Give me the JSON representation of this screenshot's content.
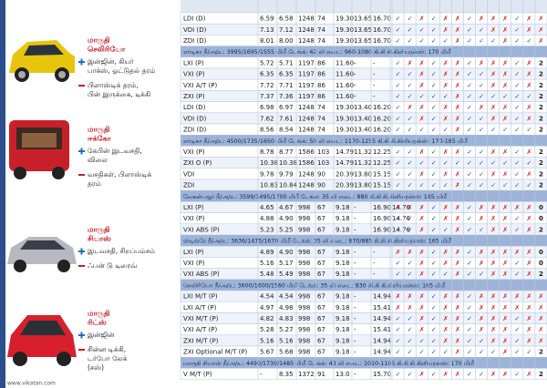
{
  "cars": [
    {
      "name": [
        "மாருதி",
        "செலிரியோ"
      ],
      "pros": [
        "இன்ஜின், கியர்",
        "பாக்ஸ், ஓட்டுதல் தரம்"
      ],
      "cons": [
        "பிளாஸ்டிக் தரம்,",
        "பின் இருக்கை, டிக்கி"
      ]
    },
    {
      "name": [
        "மாருதி",
        "ஈக்கோ"
      ],
      "pros": [
        "கேபின் இடவசதி,",
        "விலை"
      ],
      "cons": [
        "வசதிகள், பிளாஸ்டிக்",
        "தரம்"
      ]
    },
    {
      "name": [
        "மாருதி",
        "சியாஸ்"
      ],
      "pros": [
        "இடவசதி, சிறப்பம்சம்"
      ],
      "cons": [
        "ஃபன் டு டிரைவ்"
      ]
    },
    {
      "name": [
        "மாருதி",
        "ரிட்ஸ்"
      ],
      "pros": [
        "இன்ஜின்"
      ],
      "cons": [
        "சின்ன டிக்கி,",
        "டர்போ லேக்",
        "(சஸ்)"
      ]
    }
  ],
  "footer": "www.vikatan.com",
  "table": {
    "rows": [
      {
        "cells": [
          "LDI (D)",
          "6.59",
          "6.58",
          "1248",
          "74",
          "19.30",
          "13.65",
          "16.70"
        ],
        "marks": [
          "✓",
          "✓",
          "✗",
          "✓",
          "✗",
          "✗",
          "✓",
          "✗",
          "✗",
          "✗",
          "✓",
          "✗",
          "✗"
        ]
      },
      {
        "cells": [
          "VDI (D)",
          "7.13",
          "7.12",
          "1248",
          "74",
          "19.30",
          "13.65",
          "16.70"
        ],
        "marks": [
          "✓",
          "✓",
          "✓",
          "✓",
          "✗",
          "✗",
          "✓",
          "✓",
          "✗",
          "✗",
          "✓",
          "✗",
          "✗"
        ]
      },
      {
        "cells": [
          "ZDI (D)",
          "8.01",
          "8.00",
          "1248",
          "74",
          "19.30",
          "13.65",
          "16.70"
        ],
        "marks": [
          "✓",
          "✓",
          "✓",
          "✓",
          "✓",
          "✗",
          "✓",
          "✓",
          "✓",
          "✗",
          "✓",
          "✓",
          "✗"
        ]
      },
      {
        "band": "எர்டிகா  நீ/அ/உ: 3995/1695/1555 மிமீ  டேங்க்: 42 லி  எடை: 960-1080 கி.கி  கி.கிளியரன்ஸ்: 170 மிமீ"
      },
      {
        "cells": [
          "LXI (P)",
          "5.72",
          "5.71",
          "1197",
          "86",
          "11.60",
          "-",
          "-"
        ],
        "marks": [
          "✓",
          "✗",
          "✗",
          "✓",
          "✗",
          "✗",
          "✓",
          "✗",
          "✗",
          "✗",
          "✓",
          "✗",
          "2"
        ]
      },
      {
        "cells": [
          "VXI (P)",
          "6.35",
          "6.35",
          "1197",
          "86",
          "11.60",
          "-",
          "-"
        ],
        "marks": [
          "✓",
          "✓",
          "✗",
          "✓",
          "✗",
          "✗",
          "✓",
          "✓",
          "✗",
          "✗",
          "✓",
          "✗",
          "2"
        ]
      },
      {
        "cells": [
          "VXI A/T (P)",
          "7.72",
          "7.71",
          "1197",
          "86",
          "11.60",
          "-",
          "-"
        ],
        "marks": [
          "✓",
          "✓",
          "✗",
          "✓",
          "✗",
          "✗",
          "✓",
          "✓",
          "✗",
          "✗",
          "✓",
          "✗",
          "2"
        ]
      },
      {
        "cells": [
          "ZXI (P)",
          "7.37",
          "7.36",
          "1197",
          "86",
          "11.60",
          "-",
          "-"
        ],
        "marks": [
          "✓",
          "✓",
          "✓",
          "✓",
          "✓",
          "✗",
          "✓",
          "✓",
          "✓",
          "✓",
          "✓",
          "✓",
          "2"
        ]
      },
      {
        "cells": [
          "LDI (D)",
          "6.98",
          "6.97",
          "1248",
          "74",
          "19.30",
          "13.40",
          "16.20"
        ],
        "marks": [
          "✓",
          "✗",
          "✗",
          "✓",
          "✗",
          "✗",
          "✓",
          "✗",
          "✗",
          "✗",
          "✓",
          "✗",
          "2"
        ]
      },
      {
        "cells": [
          "VDI (D)",
          "7.62",
          "7.61",
          "1248",
          "74",
          "19.30",
          "13.40",
          "16.20"
        ],
        "marks": [
          "✓",
          "✓",
          "✗",
          "✓",
          "✗",
          "✗",
          "✓",
          "✓",
          "✗",
          "✗",
          "✓",
          "✗",
          "2"
        ]
      },
      {
        "cells": [
          "ZDI (D)",
          "8.56",
          "8.54",
          "1248",
          "74",
          "19.30",
          "13.40",
          "16.20"
        ],
        "marks": [
          "✓",
          "✓",
          "✓",
          "✓",
          "✓",
          "✗",
          "✓",
          "✓",
          "✓",
          "✓",
          "✓",
          "✓",
          "2"
        ]
      },
      {
        "band": "எர்டிகா  நீ/அ/உ: 4500/1735/1650 மிமீ  டேங்க்: 50 லி  எடை: 1170-1255 கி.கி  கி.கிளியரன்ஸ்: 170-185 மிமீ"
      },
      {
        "cells": [
          "VXI (P)",
          "8.78",
          "8.77",
          "1586",
          "103",
          "14.79",
          "11.32",
          "12.25"
        ],
        "marks": [
          "✓",
          "✓",
          "✗",
          "✓",
          "✗",
          "✗",
          "✓",
          "✓",
          "✗",
          "✗",
          "✓",
          "✗",
          "2"
        ]
      },
      {
        "cells": [
          "ZXI O (P)",
          "10.38",
          "10.38",
          "1586",
          "103",
          "14.79",
          "11.32",
          "12.25"
        ],
        "marks": [
          "✓",
          "✓",
          "✓",
          "✓",
          "✓",
          "✓",
          "✓",
          "✓",
          "✓",
          "✓",
          "✓",
          "✓",
          "2"
        ]
      },
      {
        "cells": [
          "VDI",
          "9.78",
          "9.79",
          "1248",
          "90",
          "20.39",
          "13.80",
          "15.15"
        ],
        "marks": [
          "✓",
          "✓",
          "✗",
          "✓",
          "✗",
          "✗",
          "✓",
          "✓",
          "✗",
          "✗",
          "✓",
          "✗",
          "2"
        ]
      },
      {
        "cells": [
          "ZDI",
          "10.83",
          "10.84",
          "1248",
          "90",
          "20.39",
          "13.80",
          "15.15"
        ],
        "marks": [
          "✓",
          "✓",
          "✓",
          "✓",
          "✓",
          "✗",
          "✓",
          "✓",
          "✓",
          "✓",
          "✓",
          "✓",
          "2"
        ]
      },
      {
        "band": "வேகன்-ஆர்  நீ/அ/உ: 3599/1495/1700 மிமீ  டேங்க்: 35 லி  எடை: 880 கி.கி  கி.கிளியரன்ஸ்: 165 மிமீ"
      },
      {
        "cells": [
          "LXI (P)",
          "4.65",
          "4.67",
          "998",
          "67",
          "9.18",
          "-",
          "16.90",
          "14.76"
        ],
        "marks": [
          "✗",
          "✗",
          "✗",
          "✓",
          "✗",
          "✗",
          "✓",
          "✗",
          "✗",
          "✗",
          "✗",
          "✗",
          "0"
        ]
      },
      {
        "cells": [
          "VXI (P)",
          "4.88",
          "4.90",
          "998",
          "67",
          "9.18",
          "-",
          "16.90",
          "14.76"
        ],
        "marks": [
          "✓",
          "✓",
          "✗",
          "✓",
          "✗",
          "✗",
          "✓",
          "✗",
          "✗",
          "✗",
          "✓",
          "✗",
          "0"
        ]
      },
      {
        "cells": [
          "VXI ABS (P)",
          "5.23",
          "5.25",
          "998",
          "67",
          "9.18",
          "-",
          "16.90",
          "14.76"
        ],
        "marks": [
          "✓",
          "✓",
          "✗",
          "✓",
          "✓",
          "✗",
          "✓",
          "✓",
          "✗",
          "✗",
          "✓",
          "✗",
          "2"
        ]
      },
      {
        "band": "ஸ்டிங்ரே  நீ/அ/உ: 3636/1475/1670 மிமீ  டேங்க்: 35 லி  எடை: 870/885 கி.கி  கி.கிளியரன்ஸ்: 165 மிமீ"
      },
      {
        "cells": [
          "LXI (P)",
          "4.89",
          "4.90",
          "998",
          "67",
          "9.18",
          "-",
          "-"
        ],
        "marks": [
          "✗",
          "✗",
          "✗",
          "✓",
          "✗",
          "✗",
          "✓",
          "✗",
          "✗",
          "✗",
          "✗",
          "✗",
          "0"
        ]
      },
      {
        "cells": [
          "VXI (P)",
          "5.16",
          "5.17",
          "998",
          "67",
          "9.18",
          "-",
          "-"
        ],
        "marks": [
          "✓",
          "✓",
          "✗",
          "✓",
          "✗",
          "✗",
          "✓",
          "✗",
          "✗",
          "✗",
          "✓",
          "✗",
          "0"
        ]
      },
      {
        "cells": [
          "VXI ABS (P)",
          "5.48",
          "5.49",
          "998",
          "67",
          "9.18",
          "-",
          "-"
        ],
        "marks": [
          "✓",
          "✓",
          "✗",
          "✓",
          "✓",
          "✗",
          "✓",
          "✓",
          "✗",
          "✗",
          "✓",
          "✗",
          "2"
        ]
      },
      {
        "band": "செலிரியோ  நீ/அ/உ: 3600/1600/1560 மிமீ  டேங்க்: 35 லி  எடை: 830 கி.கி  கி.கிளியரன்ஸ்: 165 மிமீ"
      },
      {
        "cells": [
          "LXI M/T (P)",
          "4.54",
          "4.54",
          "998",
          "67",
          "9.18",
          "-",
          "14.94"
        ],
        "marks": [
          "✗",
          "✗",
          "✗",
          "✓",
          "✗",
          "✗",
          "✓",
          "✗",
          "✗",
          "✗",
          "✗",
          "✗",
          "✗"
        ]
      },
      {
        "cells": [
          "LXI A/T (P)",
          "4.97",
          "4.98",
          "998",
          "67",
          "9.18",
          "-",
          "15.41"
        ],
        "marks": [
          "✗",
          "✗",
          "✗",
          "✓",
          "✗",
          "✗",
          "✓",
          "✗",
          "✗",
          "✗",
          "✗",
          "✗",
          "✗"
        ]
      },
      {
        "cells": [
          "VXI M/T (P)",
          "4.82",
          "4.83",
          "998",
          "67",
          "9.18",
          "-",
          "14.94"
        ],
        "marks": [
          "✓",
          "✓",
          "✗",
          "✓",
          "✗",
          "✗",
          "✓",
          "✗",
          "✗",
          "✗",
          "✓",
          "✗",
          "✗"
        ]
      },
      {
        "cells": [
          "VXI A/T (P)",
          "5.28",
          "5.27",
          "998",
          "67",
          "9.18",
          "-",
          "15.41"
        ],
        "marks": [
          "✓",
          "✓",
          "✗",
          "✓",
          "✗",
          "✗",
          "✓",
          "✗",
          "✗",
          "✗",
          "✓",
          "✗",
          "✗"
        ]
      },
      {
        "cells": [
          "ZXI M/T (P)",
          "5.16",
          "5.16",
          "998",
          "67",
          "9.18",
          "-",
          "14.94"
        ],
        "marks": [
          "✓",
          "✓",
          "✓",
          "✓",
          "✗",
          "✗",
          "✓",
          "✓",
          "✗",
          "✗",
          "✓",
          "✗",
          "✗"
        ]
      },
      {
        "cells": [
          "ZXI Optional M/T (P)",
          "5.67",
          "5.68",
          "998",
          "67",
          "9.18",
          "-",
          "14.94"
        ],
        "marks": [
          "✓",
          "✓",
          "✓",
          "✓",
          "✓",
          "✗",
          "✓",
          "✓",
          "✓",
          "✗",
          "✓",
          "✓",
          "2"
        ]
      },
      {
        "band": "மாருதி சியாஸ்  நீ/அ/உ: 4490/1730/1485 மிமீ  டேங்க்: 43 லி  எடை: 1010-1105 கி.கி  கி.கிளியரன்ஸ்: 170 மிமீ"
      },
      {
        "cells": [
          "V M/T (P)",
          "-",
          "8.35",
          "1372",
          "91",
          "13.0",
          "-",
          "15.70"
        ],
        "marks": [
          "✓",
          "✓",
          "✗",
          "✓",
          "✗",
          "✗",
          "✓",
          "✓",
          "✗",
          "✗",
          "✓",
          "✗",
          "2"
        ]
      }
    ]
  }
}
